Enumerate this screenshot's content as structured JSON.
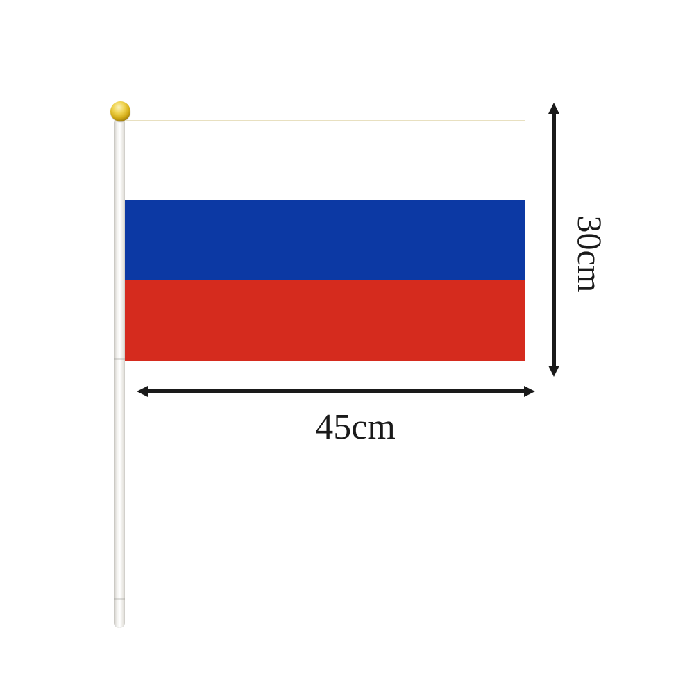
{
  "scene": {
    "description": "Hand-held stick flag product graphic with size annotations",
    "background_color": "#ffffff"
  },
  "flag": {
    "stripes": [
      {
        "name": "white",
        "color": "#ffffff"
      },
      {
        "name": "blue",
        "color": "#0c39a4"
      },
      {
        "name": "red",
        "color": "#d52b1e"
      }
    ]
  },
  "pole": {
    "body_color": "#f4f3f0",
    "finial_color": "#d3ac17"
  },
  "dimensions": {
    "height_label": "30cm",
    "width_label": "45cm",
    "arrow_color": "#1a1a1a"
  }
}
